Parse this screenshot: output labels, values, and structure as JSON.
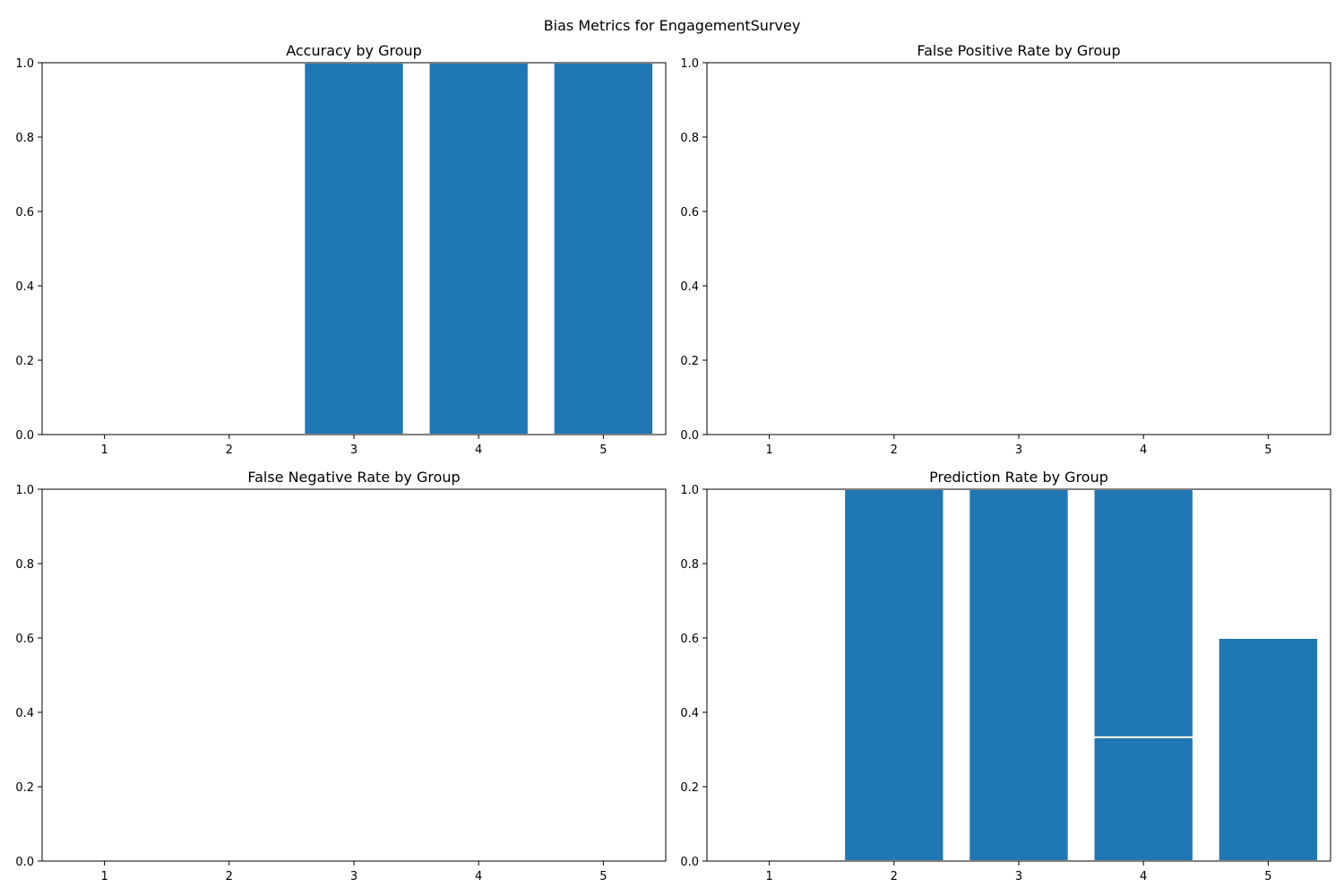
{
  "figure": {
    "suptitle": "Bias Metrics for EngagementSurvey"
  },
  "colors": {
    "bar": "#1f77b4",
    "axis": "#000000",
    "background": "#ffffff"
  },
  "chart_data": [
    {
      "type": "bar",
      "title": "Accuracy by Group",
      "xlabel": "",
      "ylabel": "",
      "xlim": [
        0.5,
        5.5
      ],
      "ylim": [
        0,
        1
      ],
      "xticks": [
        1,
        2,
        3,
        4,
        5
      ],
      "yticks": [
        0.0,
        0.2,
        0.4,
        0.6,
        0.8,
        1.0
      ],
      "grid": false,
      "bars": [
        {
          "x": 3,
          "value": 1.0,
          "width": 0.8
        },
        {
          "x": 4,
          "value": 1.0,
          "width": 0.8
        },
        {
          "x": 5,
          "value": 1.0,
          "width": 0.8
        }
      ]
    },
    {
      "type": "bar",
      "title": "False Positive Rate by Group",
      "xlabel": "",
      "ylabel": "",
      "xlim": [
        0.5,
        5.5
      ],
      "ylim": [
        0,
        1
      ],
      "xticks": [
        1,
        2,
        3,
        4,
        5
      ],
      "yticks": [
        0.0,
        0.2,
        0.4,
        0.6,
        0.8,
        1.0
      ],
      "grid": false,
      "bars": []
    },
    {
      "type": "bar",
      "title": "False Negative Rate by Group",
      "xlabel": "",
      "ylabel": "",
      "xlim": [
        0.5,
        5.5
      ],
      "ylim": [
        0,
        1
      ],
      "xticks": [
        1,
        2,
        3,
        4,
        5
      ],
      "yticks": [
        0.0,
        0.2,
        0.4,
        0.6,
        0.8,
        1.0
      ],
      "grid": false,
      "bars": []
    },
    {
      "type": "bar",
      "title": "Prediction Rate by Group",
      "xlabel": "",
      "ylabel": "",
      "xlim": [
        0.5,
        5.5
      ],
      "ylim": [
        0,
        1
      ],
      "xticks": [
        1,
        2,
        3,
        4,
        5
      ],
      "yticks": [
        0.0,
        0.2,
        0.4,
        0.6,
        0.8,
        1.0
      ],
      "grid": false,
      "bars": [
        {
          "x": 2,
          "value": 1.0,
          "width": 0.8
        },
        {
          "x": 3,
          "value": 1.0,
          "width": 0.8
        },
        {
          "x": 4,
          "value": 1.0,
          "width": 0.8
        },
        {
          "x": 4,
          "value": 0.333,
          "width": 0.8
        },
        {
          "x": 5,
          "value": 0.6,
          "width": 0.8
        }
      ]
    }
  ]
}
